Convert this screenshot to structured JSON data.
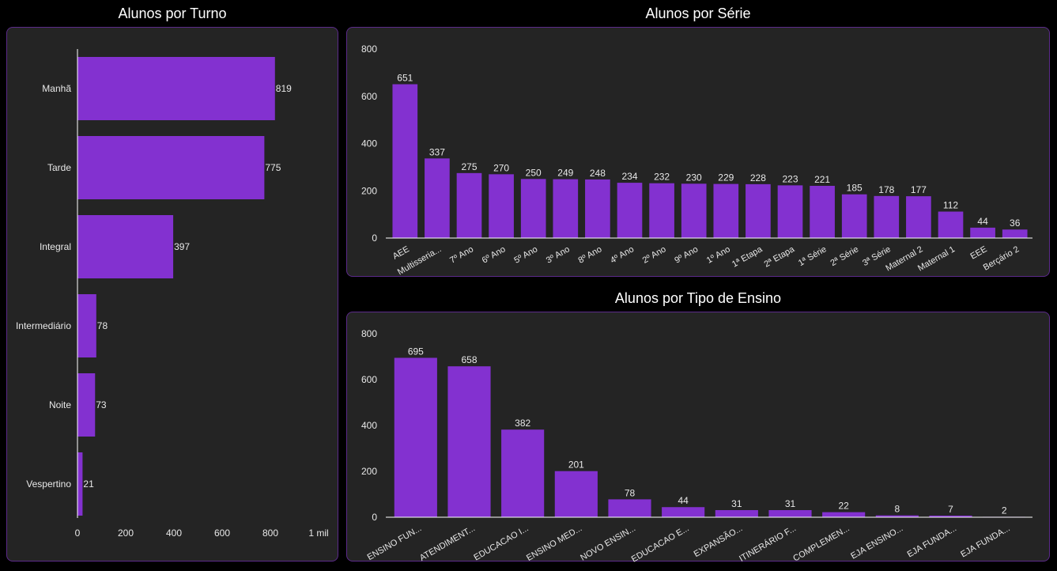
{
  "colors": {
    "background": "#000000",
    "panel": "#242424",
    "panel_border": "#5b2a8a",
    "bar": "#8331d0",
    "text": "#e8e8e8",
    "axis": "#ffffff"
  },
  "chart_data": [
    {
      "type": "bar",
      "orientation": "horizontal",
      "title": "Alunos por Turno",
      "categories": [
        "Manhã",
        "Tarde",
        "Integral",
        "Intermediário",
        "Noite",
        "Vespertino"
      ],
      "values": [
        819,
        775,
        397,
        78,
        73,
        21
      ],
      "xlim": [
        0,
        1000
      ],
      "ticks": [
        "0",
        "200",
        "400",
        "600",
        "800",
        "1 mil"
      ],
      "tick_values": [
        0,
        200,
        400,
        600,
        800,
        1000
      ],
      "grid": false,
      "legend": "none"
    },
    {
      "type": "bar",
      "title": "Alunos por Série",
      "categories": [
        "AEE",
        "Multisseria...",
        "7º Ano",
        "6º Ano",
        "5º Ano",
        "3º Ano",
        "8º Ano",
        "4º Ano",
        "2º Ano",
        "9º Ano",
        "1º Ano",
        "1ª Etapa",
        "2ª Etapa",
        "1ª Série",
        "2ª Série",
        "3ª Série",
        "Maternal 2",
        "Maternal 1",
        "EEE",
        "Berçário 2"
      ],
      "values": [
        651,
        337,
        275,
        270,
        250,
        249,
        248,
        234,
        232,
        230,
        229,
        228,
        223,
        221,
        185,
        178,
        177,
        112,
        44,
        36
      ],
      "ylim": [
        0,
        800
      ],
      "ticks": [
        "0",
        "200",
        "400",
        "600",
        "800"
      ],
      "tick_values": [
        0,
        200,
        400,
        600,
        800
      ],
      "grid": false,
      "legend": "none"
    },
    {
      "type": "bar",
      "title": "Alunos por Tipo de Ensino",
      "categories": [
        "ENSINO FUN...",
        "ATENDIMENT...",
        "EDUCACAO I...",
        "ENSINO MED...",
        "NOVO ENSIN...",
        "EDUCACAO E...",
        "EXPANSÃO...",
        "ITINERÁRIO F...",
        "COMPLEMEN...",
        "EJA ENSINO...",
        "EJA FUNDA...",
        "EJA FUNDA..."
      ],
      "values": [
        695,
        658,
        382,
        201,
        78,
        44,
        31,
        31,
        22,
        8,
        7,
        2
      ],
      "ylim": [
        0,
        800
      ],
      "ticks": [
        "0",
        "200",
        "400",
        "600",
        "800"
      ],
      "tick_values": [
        0,
        200,
        400,
        600,
        800
      ],
      "grid": false,
      "legend": "none"
    }
  ]
}
